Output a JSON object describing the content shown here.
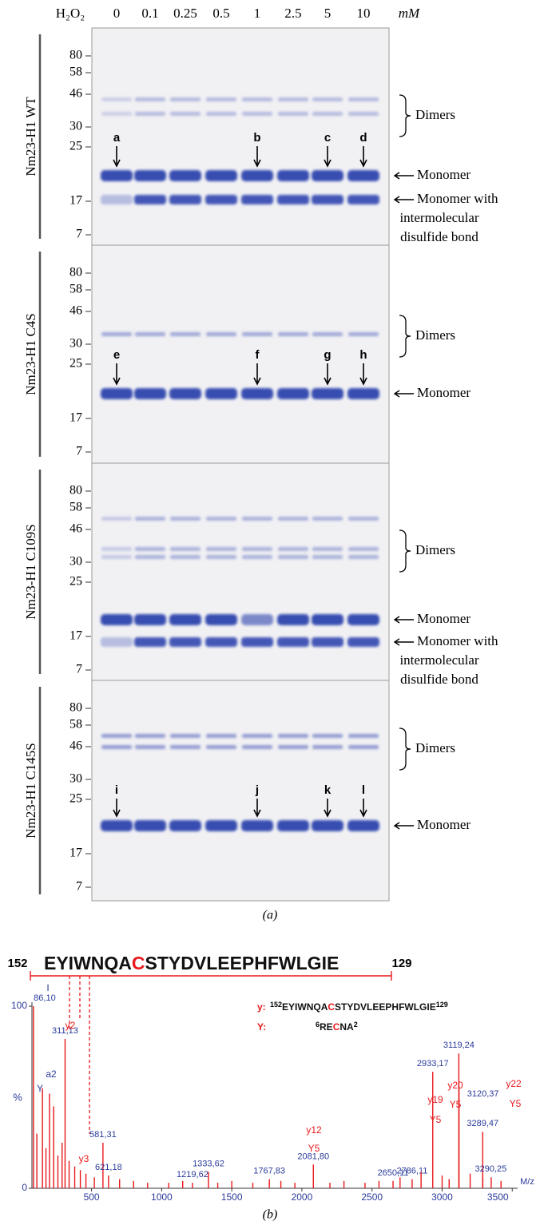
{
  "gel": {
    "reagent": "H₂O₂",
    "unit": "mM",
    "concentrations": [
      "0",
      "0.1",
      "0.25",
      "0.5",
      "1",
      "2.5",
      "5",
      "10"
    ],
    "panels": [
      {
        "name": "Nm23-H1 WT",
        "mw_markers": [
          "80",
          "58",
          "46",
          "30",
          "25",
          "17",
          "7"
        ],
        "arrows": [
          "a",
          "b",
          "c",
          "d"
        ],
        "labels": [
          "Dimers",
          "Monomer",
          "Monomer with",
          "intermolecular",
          "disulfide bond"
        ]
      },
      {
        "name": "Nm23-H1 C4S",
        "mw_markers": [
          "80",
          "58",
          "46",
          "30",
          "25",
          "17",
          "7"
        ],
        "arrows": [
          "e",
          "f",
          "g",
          "h"
        ],
        "labels": [
          "Dimers",
          "Monomer"
        ]
      },
      {
        "name": "Nm23-H1 C109S",
        "mw_markers": [
          "80",
          "58",
          "46",
          "30",
          "25",
          "17",
          "7"
        ],
        "arrows": [],
        "labels": [
          "Dimers",
          "Monomer",
          "Monomer with",
          "intermolecular",
          "disulfide bond"
        ]
      },
      {
        "name": "Nm23-H1 C145S",
        "mw_markers": [
          "80",
          "58",
          "46",
          "30",
          "25",
          "17",
          "7"
        ],
        "arrows": [
          "i",
          "j",
          "k",
          "l"
        ],
        "labels": [
          "Dimers",
          "Monomer"
        ]
      }
    ],
    "caption": "(a)"
  },
  "chart_data": {
    "type": "spectrum",
    "sequence": {
      "start": "152",
      "parts": [
        "EYIWNQA",
        "C",
        "STYDVLEEPHFWLGIE"
      ],
      "end": "129"
    },
    "legend": [
      {
        "key": "y:",
        "start": "152",
        "parts": [
          "EYIWNQA",
          "C",
          "STYDVLEEPHFWLGIE"
        ],
        "end": "129"
      },
      {
        "key": "Y:",
        "start": "6",
        "parts": [
          "RE",
          "C",
          "NA"
        ],
        "end": "2"
      }
    ],
    "annotations": [
      "I",
      "Y",
      "a2",
      "y2",
      "y3",
      "y12",
      "Y5",
      "y19",
      "Y5",
      "y20",
      "Y5",
      "y22",
      "Y5"
    ],
    "xlabel": "M/z",
    "ylabel": "%",
    "xlim": [
      75,
      3510
    ],
    "ylim": [
      0,
      100
    ],
    "xticks": [
      500,
      1000,
      1500,
      2000,
      2500,
      3000,
      3500
    ],
    "yticks": [
      0,
      100
    ],
    "series": [
      {
        "color": "#e8191c",
        "x": [
          86.1,
          311.13,
          581.31,
          621.18,
          1219.62,
          1333.62,
          1767.83,
          2081.8,
          2650.11,
          2786.11,
          2933.17,
          3119.24,
          3120.37,
          3289.47,
          3290.25
        ],
        "values": [
          100,
          82,
          25,
          7,
          3,
          9,
          5,
          13,
          4,
          5,
          64,
          74,
          56,
          31,
          6
        ],
        "value_labels": [
          "86,10",
          "311,13",
          "581,31",
          "621,18",
          "1219,62",
          "1333,62",
          "1767,83",
          "2081,80",
          "2650,11",
          "2786,11",
          "2933,17",
          "3119,24",
          "3120,37",
          "3289,47",
          "3290,25"
        ]
      },
      {
        "color": "#e8191c",
        "x": [
          110,
          150,
          175,
          200,
          230,
          260,
          290,
          340,
          380,
          420,
          460,
          520,
          700,
          800,
          900,
          1050,
          1150,
          1400,
          1500,
          1650,
          1850,
          1950,
          2200,
          2300,
          2450,
          2550,
          2700,
          2850,
          3000,
          3050,
          3200,
          3350,
          3420
        ],
        "values": [
          30,
          55,
          22,
          52,
          45,
          18,
          25,
          15,
          12,
          10,
          8,
          6,
          5,
          4,
          3,
          3,
          4,
          3,
          4,
          3,
          4,
          3,
          3,
          4,
          3,
          4,
          6,
          9,
          7,
          5,
          8,
          6,
          4
        ]
      }
    ]
  },
  "caption_b": "(b)"
}
